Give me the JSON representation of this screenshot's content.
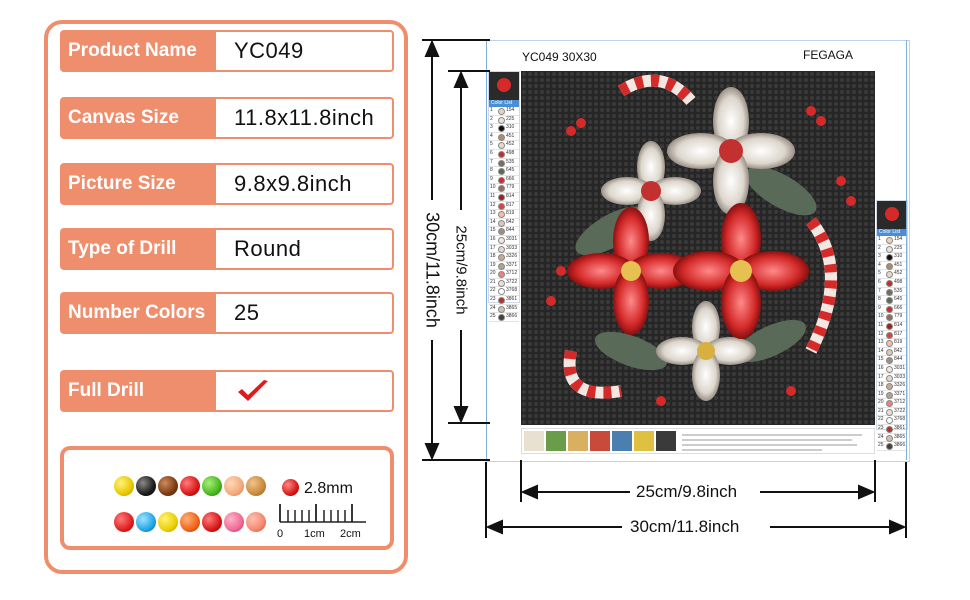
{
  "spec_rows": [
    {
      "label": "Product Name",
      "value": "YC049"
    },
    {
      "label": "Canvas Size",
      "value": "11.8x11.8inch"
    },
    {
      "label": "Picture Size",
      "value": "9.8x9.8inch"
    },
    {
      "label": "Type of Drill",
      "value": "Round"
    },
    {
      "label": "Number Colors",
      "value": "25"
    },
    {
      "label": "Full Drill",
      "value": ""
    }
  ],
  "bead_sample": {
    "size": "2.8mm",
    "ruler_labels": [
      "0",
      "1cm",
      "2cm"
    ]
  },
  "canvas": {
    "code": "YC049  30X30",
    "brand": "FEGAGA"
  },
  "dimensions": {
    "picture_vertical": "25cm/9.8inch",
    "canvas_vertical": "30cm/11.8inch",
    "picture_horizontal": "25cm/9.8inch",
    "canvas_horizontal": "30cm/11.8inch"
  },
  "color_list": {
    "title": "Color List",
    "codes": [
      "154",
      "225",
      "310",
      "451",
      "452",
      "498",
      "535",
      "645",
      "666",
      "779",
      "814",
      "817",
      "819",
      "842",
      "844",
      "3031",
      "3033",
      "3326",
      "3371",
      "3712",
      "3722",
      "3768",
      "3861",
      "3865",
      "3866"
    ]
  },
  "colors": {
    "accent": "#ef8e6d",
    "blue": "#4a8fd6",
    "check": "#e01b1b",
    "background": "#2a2a2a"
  }
}
